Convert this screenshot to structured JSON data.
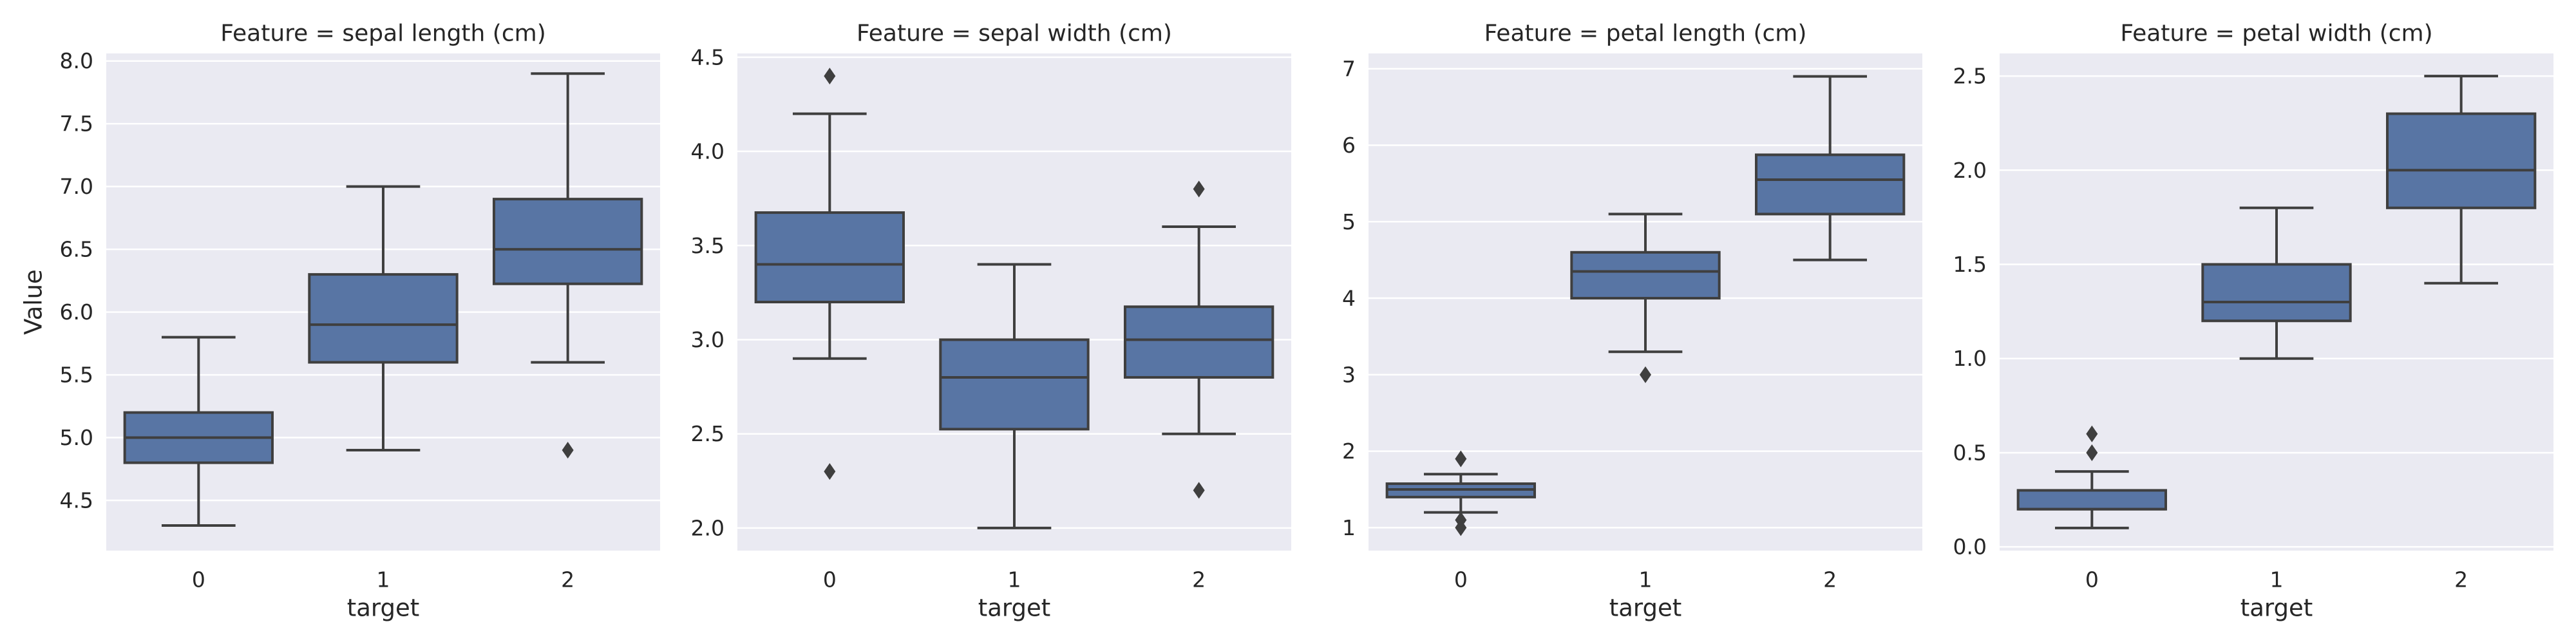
{
  "chart_data": [
    {
      "type": "box",
      "title": "Feature = sepal length (cm)",
      "xlabel": "target",
      "ylabel": "Value",
      "categories": [
        "0",
        "1",
        "2"
      ],
      "ylim": [
        4.1,
        8.06
      ],
      "yticks": [
        4.5,
        5.0,
        5.5,
        6.0,
        6.5,
        7.0,
        7.5,
        8.0
      ],
      "ytick_labels": [
        "4.5",
        "5.0",
        "5.5",
        "6.0",
        "6.5",
        "7.0",
        "7.5",
        "8.0"
      ],
      "grid": true,
      "color": "#5875a4",
      "boxes": [
        {
          "category": "0",
          "whisker_low": 4.3,
          "q1": 4.8,
          "median": 5.0,
          "q3": 5.2,
          "whisker_high": 5.8,
          "outliers": []
        },
        {
          "category": "1",
          "whisker_low": 4.9,
          "q1": 5.6,
          "median": 5.9,
          "q3": 6.3,
          "whisker_high": 7.0,
          "outliers": []
        },
        {
          "category": "2",
          "whisker_low": 5.6,
          "q1": 6.225,
          "median": 6.5,
          "q3": 6.9,
          "whisker_high": 7.9,
          "outliers": [
            4.9
          ]
        }
      ]
    },
    {
      "type": "box",
      "title": "Feature = sepal width (cm)",
      "xlabel": "target",
      "ylabel": "",
      "categories": [
        "0",
        "1",
        "2"
      ],
      "ylim": [
        1.88,
        4.52
      ],
      "yticks": [
        2.0,
        2.5,
        3.0,
        3.5,
        4.0,
        4.5
      ],
      "ytick_labels": [
        "2.0",
        "2.5",
        "3.0",
        "3.5",
        "4.0",
        "4.5"
      ],
      "grid": true,
      "color": "#5875a4",
      "boxes": [
        {
          "category": "0",
          "whisker_low": 2.9,
          "q1": 3.2,
          "median": 3.4,
          "q3": 3.675,
          "whisker_high": 4.2,
          "outliers": [
            4.4,
            2.3
          ]
        },
        {
          "category": "1",
          "whisker_low": 2.0,
          "q1": 2.525,
          "median": 2.8,
          "q3": 3.0,
          "whisker_high": 3.4,
          "outliers": []
        },
        {
          "category": "2",
          "whisker_low": 2.5,
          "q1": 2.8,
          "median": 3.0,
          "q3": 3.175,
          "whisker_high": 3.6,
          "outliers": [
            3.8,
            2.2
          ]
        }
      ]
    },
    {
      "type": "box",
      "title": "Feature = petal length (cm)",
      "xlabel": "target",
      "ylabel": "",
      "categories": [
        "0",
        "1",
        "2"
      ],
      "ylim": [
        0.7,
        7.2
      ],
      "yticks": [
        1,
        2,
        3,
        4,
        5,
        6,
        7
      ],
      "ytick_labels": [
        "1",
        "2",
        "3",
        "4",
        "5",
        "6",
        "7"
      ],
      "grid": true,
      "color": "#5875a4",
      "boxes": [
        {
          "category": "0",
          "whisker_low": 1.2,
          "q1": 1.4,
          "median": 1.5,
          "q3": 1.575,
          "whisker_high": 1.7,
          "outliers": [
            1.9,
            1.1,
            1.0
          ]
        },
        {
          "category": "1",
          "whisker_low": 3.3,
          "q1": 4.0,
          "median": 4.35,
          "q3": 4.6,
          "whisker_high": 5.1,
          "outliers": [
            3.0
          ]
        },
        {
          "category": "2",
          "whisker_low": 4.5,
          "q1": 5.1,
          "median": 5.55,
          "q3": 5.875,
          "whisker_high": 6.9,
          "outliers": []
        }
      ]
    },
    {
      "type": "box",
      "title": "Feature = petal width (cm)",
      "xlabel": "target",
      "ylabel": "",
      "categories": [
        "0",
        "1",
        "2"
      ],
      "ylim": [
        -0.02,
        2.62
      ],
      "yticks": [
        0.0,
        0.5,
        1.0,
        1.5,
        2.0,
        2.5
      ],
      "ytick_labels": [
        "0.0",
        "0.5",
        "1.0",
        "1.5",
        "2.0",
        "2.5"
      ],
      "grid": true,
      "color": "#5875a4",
      "boxes": [
        {
          "category": "0",
          "whisker_low": 0.1,
          "q1": 0.2,
          "median": 0.2,
          "q3": 0.3,
          "whisker_high": 0.4,
          "outliers": [
            0.6,
            0.5
          ]
        },
        {
          "category": "1",
          "whisker_low": 1.0,
          "q1": 1.2,
          "median": 1.3,
          "q3": 1.5,
          "whisker_high": 1.8,
          "outliers": []
        },
        {
          "category": "2",
          "whisker_low": 1.4,
          "q1": 1.8,
          "median": 2.0,
          "q3": 2.3,
          "whisker_high": 2.5,
          "outliers": []
        }
      ]
    }
  ]
}
